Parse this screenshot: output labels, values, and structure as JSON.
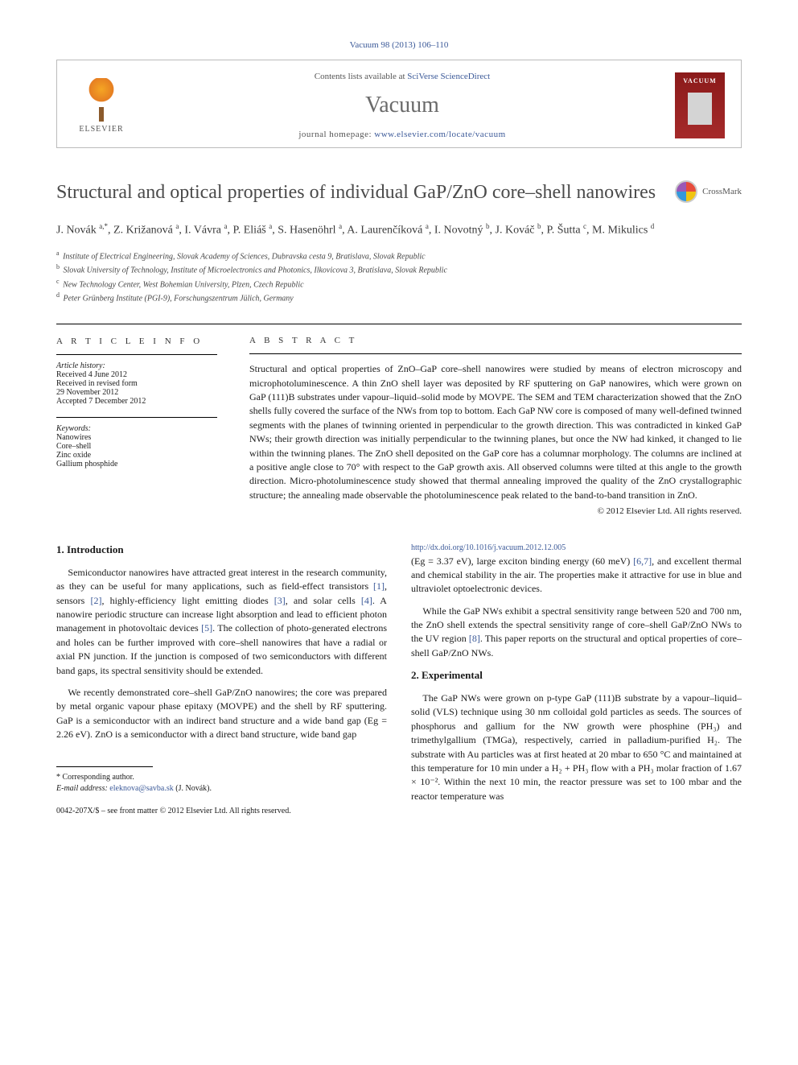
{
  "citation": "Vacuum 98 (2013) 106–110",
  "header": {
    "contents_prefix": "Contents lists available at ",
    "contents_link": "SciVerse ScienceDirect",
    "journal": "Vacuum",
    "homepage_prefix": "journal homepage: ",
    "homepage_url": "www.elsevier.com/locate/vacuum",
    "publisher": "ELSEVIER",
    "cover_label": "VACUUM"
  },
  "crossmark_label": "CrossMark",
  "title": "Structural and optical properties of individual GaP/ZnO core–shell nanowires",
  "authors_html": "J. Novák <sup>a,*</sup>, Z. Križanová <sup>a</sup>, I. Vávra <sup>a</sup>, P. Eliáš <sup>a</sup>, S. Hasenöhrl <sup>a</sup>, A. Laurenčíková <sup>a</sup>, I. Novotný <sup>b</sup>, J. Kováč <sup>b</sup>, P. Šutta <sup>c</sup>, M. Mikulics <sup>d</sup>",
  "affiliations": [
    {
      "sup": "a",
      "text": "Institute of Electrical Engineering, Slovak Academy of Sciences, Dubravska cesta 9, Bratislava, Slovak Republic"
    },
    {
      "sup": "b",
      "text": "Slovak University of Technology, Institute of Microelectronics and Photonics, Ilkovicova 3, Bratislava, Slovak Republic"
    },
    {
      "sup": "c",
      "text": "New Technology Center, West Bohemian University, Plzen, Czech Republic"
    },
    {
      "sup": "d",
      "text": "Peter Grünberg Institute (PGI-9), Forschungszentrum Jülich, Germany"
    }
  ],
  "article_info": {
    "heading": "A R T I C L E   I N F O",
    "history_label": "Article history:",
    "history": [
      "Received 4 June 2012",
      "Received in revised form",
      "29 November 2012",
      "Accepted 7 December 2012"
    ],
    "keywords_label": "Keywords:",
    "keywords": [
      "Nanowires",
      "Core–shell",
      "Zinc oxide",
      "Gallium phosphide"
    ]
  },
  "abstract": {
    "heading": "A B S T R A C T",
    "text": "Structural and optical properties of ZnO–GaP core–shell nanowires were studied by means of electron microscopy and microphotoluminescence. A thin ZnO shell layer was deposited by RF sputtering on GaP nanowires, which were grown on GaP (111)B substrates under vapour–liquid–solid mode by MOVPE. The SEM and TEM characterization showed that the ZnO shells fully covered the surface of the NWs from top to bottom. Each GaP NW core is composed of many well-defined twinned segments with the planes of twinning oriented in perpendicular to the growth direction. This was contradicted in kinked GaP NWs; their growth direction was initially perpendicular to the twinning planes, but once the NW had kinked, it changed to lie within the twinning planes. The ZnO shell deposited on the GaP core has a columnar morphology. The columns are inclined at a positive angle close to 70° with respect to the GaP growth axis. All observed columns were tilted at this angle to the growth direction. Micro-photoluminescence study showed that thermal annealing improved the quality of the ZnO crystallographic structure; the annealing made observable the photoluminescence peak related to the band-to-band transition in ZnO.",
    "copyright": "© 2012 Elsevier Ltd. All rights reserved."
  },
  "sections": {
    "intro_heading": "1. Introduction",
    "intro_p1": "Semiconductor nanowires have attracted great interest in the research community, as they can be useful for many applications, such as field-effect transistors [1], sensors [2], highly-efficiency light emitting diodes [3], and solar cells [4]. A nanowire periodic structure can increase light absorption and lead to efficient photon management in photovoltaic devices [5]. The collection of photo-generated electrons and holes can be further improved with core–shell nanowires that have a radial or axial PN junction. If the junction is composed of two semiconductors with different band gaps, its spectral sensitivity should be extended.",
    "intro_p2": "We recently demonstrated core–shell GaP/ZnO nanowires; the core was prepared by metal organic vapour phase epitaxy (MOVPE) and the shell by RF sputtering. GaP is a semiconductor with an indirect band structure and a wide band gap (Eg = 2.26 eV). ZnO is a semiconductor with a direct band structure, wide band gap",
    "intro_p3": "(Eg = 3.37 eV), large exciton binding energy (60 meV) [6,7], and excellent thermal and chemical stability in the air. The properties make it attractive for use in blue and ultraviolet optoelectronic devices.",
    "intro_p4": "While the GaP NWs exhibit a spectral sensitivity range between 520 and 700 nm, the ZnO shell extends the spectral sensitivity range of core–shell GaP/ZnO NWs to the UV region [8]. This paper reports on the structural and optical properties of core–shell GaP/ZnO NWs.",
    "exp_heading": "2. Experimental",
    "exp_p1": "The GaP NWs were grown on p-type GaP (111)B substrate by a vapour–liquid–solid (VLS) technique using 30 nm colloidal gold particles as seeds. The sources of phosphorus and gallium for the NW growth were phosphine (PH₃) and trimethylgallium (TMGa), respectively, carried in palladium-purified H₂. The substrate with Au particles was at first heated at 20 mbar to 650 °C and maintained at this temperature for 10 min under a H₂ + PH₃ flow with a PH₃ molar fraction of 1.67 × 10⁻². Within the next 10 min, the reactor pressure was set to 100 mbar and the reactor temperature was"
  },
  "footnote": {
    "corr": "* Corresponding author.",
    "email_label": "E-mail address: ",
    "email": "eleknova@savba.sk",
    "email_suffix": " (J. Novák)."
  },
  "bottom": {
    "issn": "0042-207X/$ – see front matter © 2012 Elsevier Ltd. All rights reserved.",
    "doi_url": "http://dx.doi.org/10.1016/j.vacuum.2012.12.005"
  },
  "colors": {
    "link": "#3b5998",
    "cover_bg": "#8b1a1a",
    "title_gray": "#4a4a4a"
  }
}
